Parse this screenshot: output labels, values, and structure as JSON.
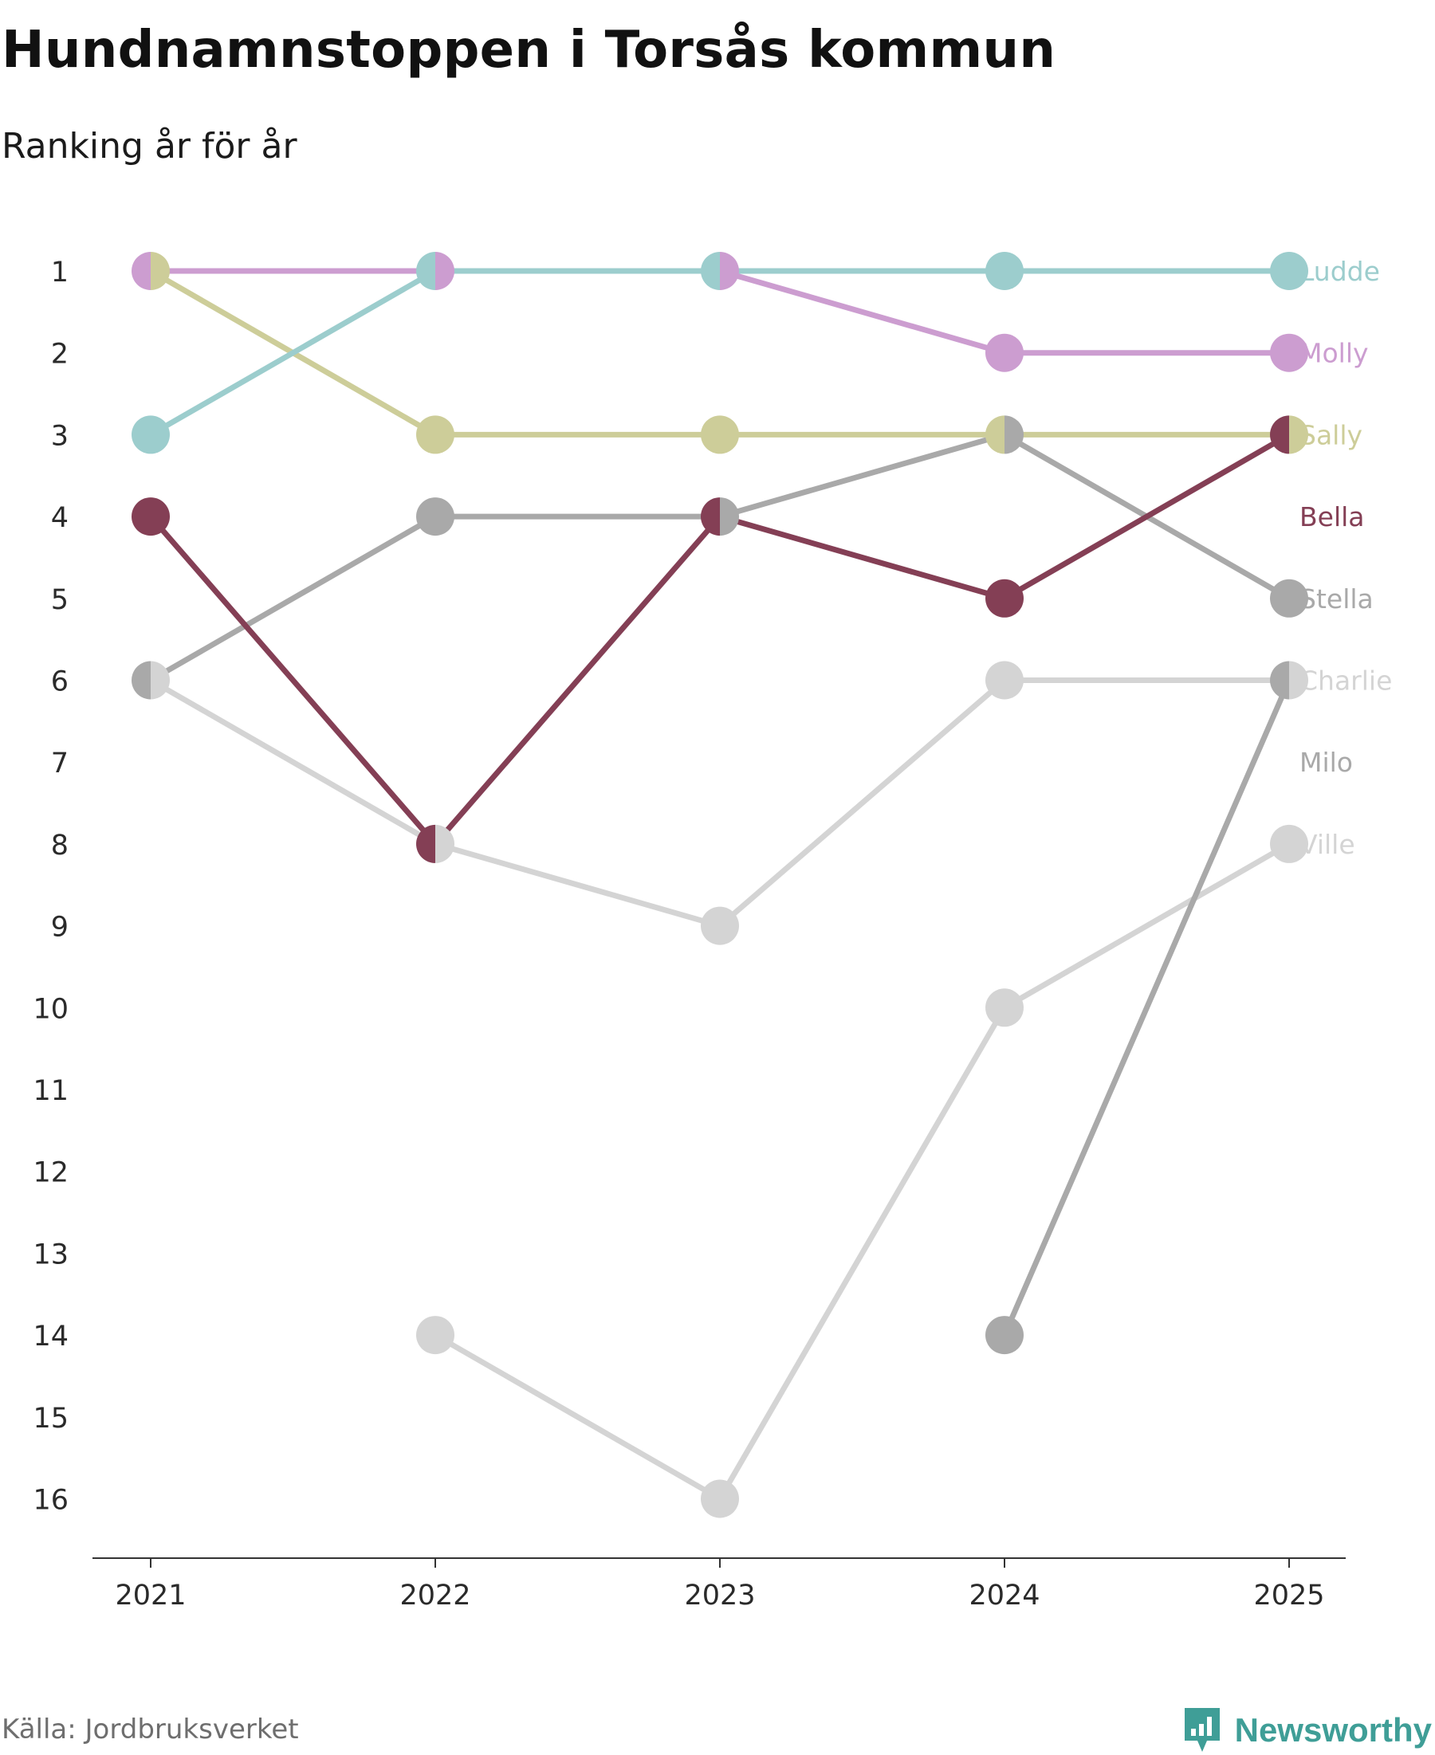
{
  "title": "Hundnamnstoppen i Torsås kommun",
  "subtitle": "Ranking år för år",
  "source": "Källa: Jordbruksverket",
  "brand": "Newsworthy",
  "brand_color": "#3f9e97",
  "chart_data": {
    "type": "line",
    "subtype": "bump",
    "x": [
      "2021",
      "2022",
      "2023",
      "2024",
      "2025"
    ],
    "y_ticks": [
      "1",
      "2",
      "3",
      "4",
      "5",
      "6",
      "7",
      "8",
      "9",
      "10",
      "11",
      "12",
      "13",
      "14",
      "15",
      "16"
    ],
    "ylim": [
      1,
      16
    ],
    "y_reversed": true,
    "legend": "labels at right end of lines",
    "series": [
      {
        "name": "Ludde",
        "color": "#9ccdcd",
        "ranks": [
          3,
          1,
          1,
          1,
          1
        ]
      },
      {
        "name": "Molly",
        "color": "#cc9dd0",
        "ranks": [
          1,
          1,
          1,
          2,
          2
        ]
      },
      {
        "name": "Sally",
        "color": "#cdcd99",
        "ranks": [
          1,
          3,
          3,
          3,
          3
        ]
      },
      {
        "name": "Bella",
        "color": "#843f55",
        "ranks": [
          4,
          8,
          4,
          5,
          3
        ]
      },
      {
        "name": "Stella",
        "color": "#a9a9a9",
        "ranks": [
          6,
          4,
          4,
          3,
          5
        ]
      },
      {
        "name": "Charlie",
        "color": "#d4d4d4",
        "ranks": [
          6,
          8,
          9,
          6,
          6
        ]
      },
      {
        "name": "Milo",
        "color": "#a9a9a9",
        "ranks": [
          null,
          null,
          null,
          14,
          6
        ]
      },
      {
        "name": "Ville",
        "color": "#d4d4d4",
        "ranks": [
          null,
          14,
          16,
          10,
          8
        ]
      }
    ]
  }
}
